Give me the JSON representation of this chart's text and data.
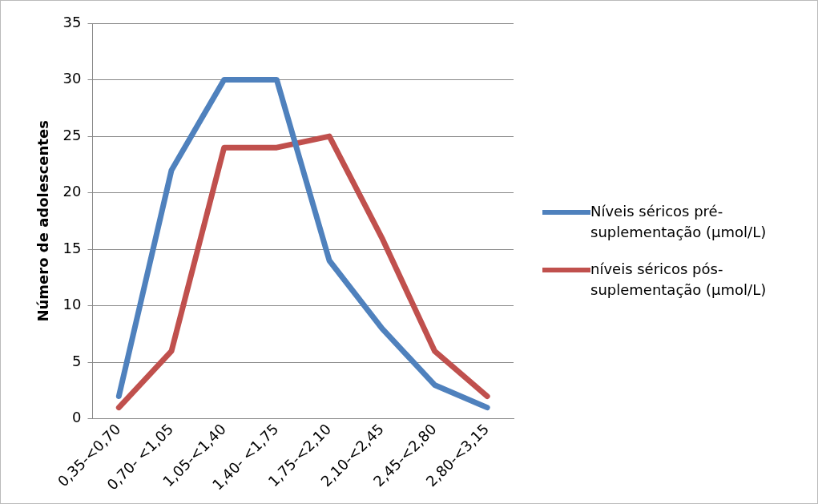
{
  "chart_data": {
    "type": "line",
    "ylabel": "Número de adolescentes",
    "categories": [
      "0,35-<0,70",
      "0,70- <1,05",
      "1,05-<1,40",
      "1,40- <1,75",
      "1,75-<2,10",
      "2,10-<2,45",
      "2,45-<2,80",
      "2,80-<3,15"
    ],
    "series": [
      {
        "name": "Níveis séricos pré-suplementação (µmol/L)",
        "color": "#4f81bd",
        "values": [
          2,
          22,
          30,
          30,
          14,
          8,
          3,
          1
        ]
      },
      {
        "name": "níveis séricos pós-suplementação (µmol/L)",
        "color": "#c0504d",
        "values": [
          1,
          6,
          24,
          24,
          25,
          16,
          6,
          2
        ]
      }
    ],
    "ylim": [
      0,
      35
    ],
    "yticks": [
      0,
      5,
      10,
      15,
      20,
      25,
      30,
      35
    ],
    "grid": "y",
    "legend": "right",
    "marker": "none",
    "line_style": "solid"
  }
}
